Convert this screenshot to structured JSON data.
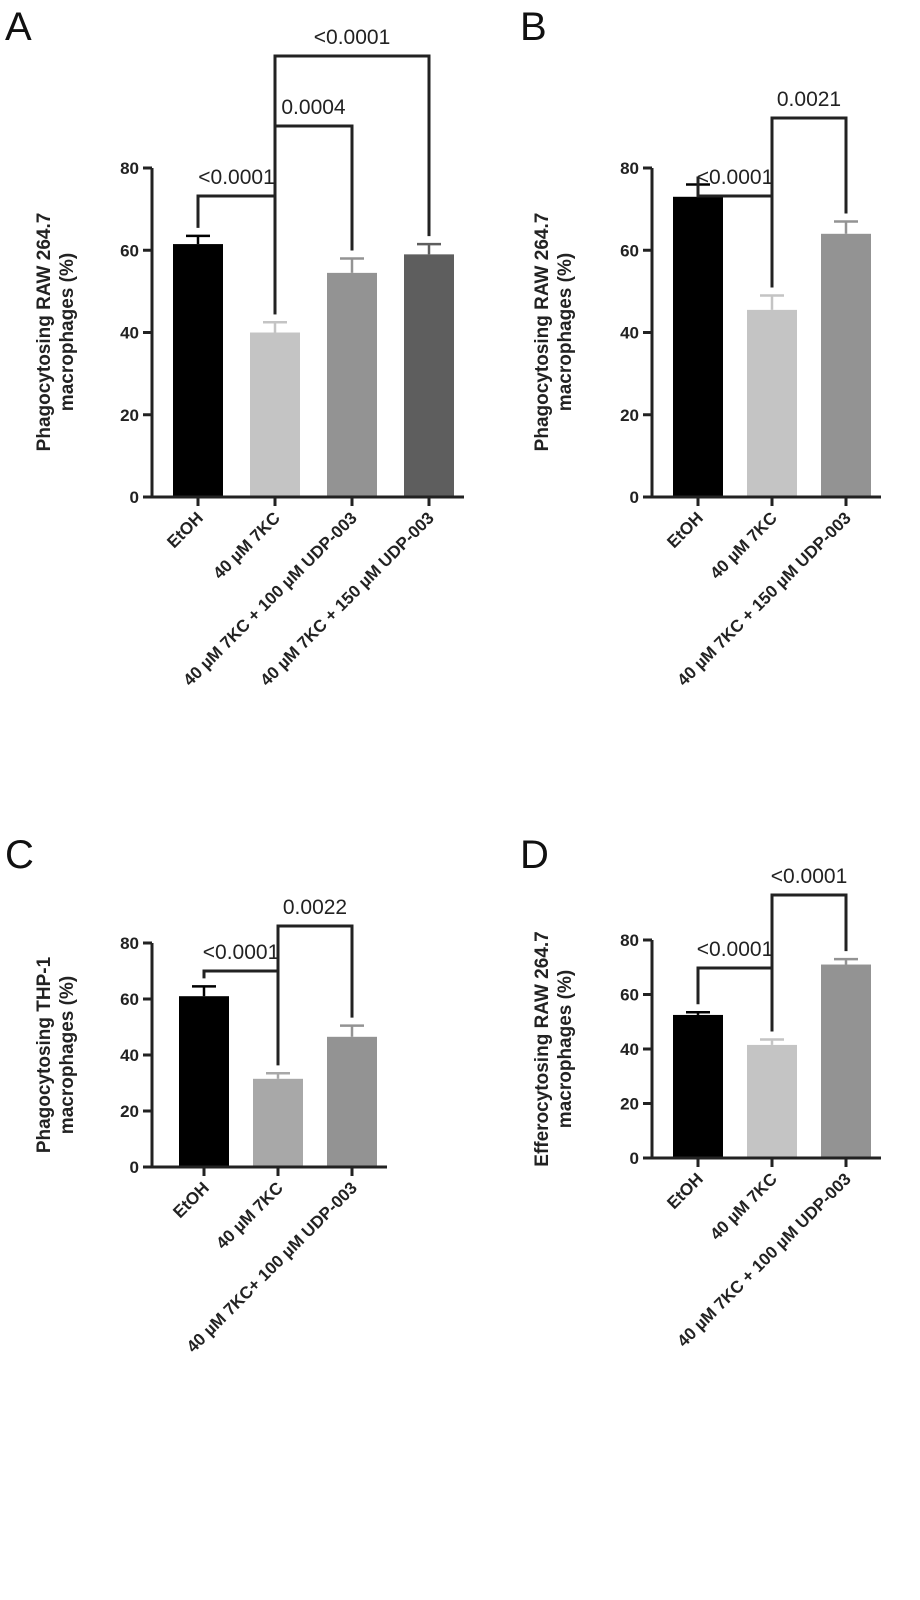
{
  "chart_data": [
    {
      "panel": "A",
      "type": "bar",
      "ylabel": [
        "Phagocytosing RAW 264.7",
        "macrophages (%)"
      ],
      "ylim": [
        0,
        80
      ],
      "yticks": [
        0,
        20,
        40,
        60,
        80
      ],
      "categories": [
        "EtOH",
        "40 µM 7KC",
        "40 µM 7KC + 100 µM UDP-003",
        "40 µM 7KC + 150 µM UDP-003"
      ],
      "values": [
        61.5,
        40,
        54.5,
        59
      ],
      "errors": [
        2,
        2.5,
        3.5,
        2.5
      ],
      "colors": [
        "#000000",
        "#c4c4c4",
        "#939393",
        "#5e5e5e"
      ],
      "comparisons": [
        {
          "from": 0,
          "to": 1,
          "label": "<0.0001"
        },
        {
          "from": 1,
          "to": 2,
          "label": "0.0004"
        },
        {
          "from": 1,
          "to": 3,
          "label": "<0.0001"
        }
      ]
    },
    {
      "panel": "B",
      "type": "bar",
      "ylabel": [
        "Phagocytosing RAW 264.7",
        "macrophages (%)"
      ],
      "ylim": [
        0,
        80
      ],
      "yticks": [
        0,
        20,
        40,
        60,
        80
      ],
      "categories": [
        "EtOH",
        "40 µM 7KC",
        "40 µM 7KC + 150 µM UDP-003"
      ],
      "values": [
        73,
        45.5,
        64
      ],
      "errors": [
        3,
        3.5,
        3
      ],
      "colors": [
        "#000000",
        "#c4c4c4",
        "#939393"
      ],
      "comparisons": [
        {
          "from": 0,
          "to": 1,
          "label": "<0.0001"
        },
        {
          "from": 1,
          "to": 2,
          "label": "0.0021"
        }
      ]
    },
    {
      "panel": "C",
      "type": "bar",
      "ylabel": [
        "Phagocytosing THP-1",
        "macrophages (%)"
      ],
      "ylim": [
        0,
        80
      ],
      "yticks": [
        0,
        20,
        40,
        60,
        80
      ],
      "categories": [
        "EtOH",
        "40 µM 7KC",
        "40 µM 7KC+ 100 µM UDP-003"
      ],
      "values": [
        61,
        31.5,
        46.5
      ],
      "errors": [
        3.5,
        2,
        4
      ],
      "colors": [
        "#000000",
        "#a8a8a8",
        "#939393"
      ],
      "comparisons": [
        {
          "from": 0,
          "to": 1,
          "label": "<0.0001"
        },
        {
          "from": 1,
          "to": 2,
          "label": "0.0022"
        }
      ]
    },
    {
      "panel": "D",
      "type": "bar",
      "ylabel": [
        "Efferocytosing RAW 264.7",
        "macrophages (%)"
      ],
      "ylim": [
        0,
        80
      ],
      "yticks": [
        0,
        20,
        40,
        60,
        80
      ],
      "categories": [
        "EtOH",
        "40 µM 7KC",
        "40 µM 7KC + 100 µM UDP-003"
      ],
      "values": [
        52.5,
        41.5,
        71
      ],
      "errors": [
        1,
        2,
        2
      ],
      "colors": [
        "#000000",
        "#c4c4c4",
        "#939393"
      ],
      "comparisons": [
        {
          "from": 0,
          "to": 1,
          "label": "<0.0001"
        },
        {
          "from": 1,
          "to": 2,
          "label": "<0.0001"
        }
      ]
    }
  ]
}
